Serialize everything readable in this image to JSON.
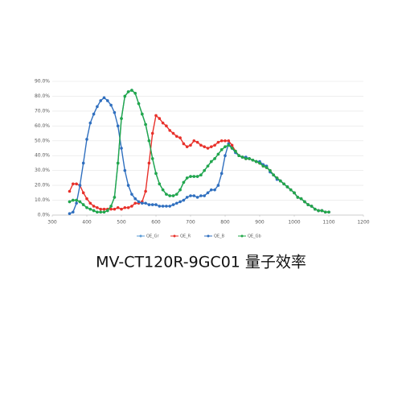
{
  "chart_data": {
    "type": "line",
    "title": "MV-CT120R-9GC01 量子效率",
    "x": [
      350,
      360,
      370,
      380,
      390,
      400,
      410,
      420,
      430,
      440,
      450,
      460,
      470,
      480,
      490,
      500,
      510,
      520,
      530,
      540,
      550,
      560,
      570,
      580,
      590,
      600,
      610,
      620,
      630,
      640,
      650,
      660,
      670,
      680,
      690,
      700,
      710,
      720,
      730,
      740,
      750,
      760,
      770,
      780,
      790,
      800,
      810,
      820,
      830,
      840,
      850,
      860,
      870,
      880,
      890,
      900,
      910,
      920,
      930,
      940,
      950,
      960,
      970,
      980,
      990,
      1000,
      1010,
      1020,
      1030,
      1040,
      1050,
      1060,
      1070,
      1080,
      1090,
      1100
    ],
    "series": [
      {
        "name": "QE_Gr",
        "color": "#5b9bd5",
        "values": [
          9,
          10,
          10,
          9,
          7,
          5,
          4,
          3,
          2,
          2,
          2,
          3,
          6,
          12,
          35,
          65,
          80,
          83,
          84,
          82,
          75,
          68,
          61,
          50,
          38,
          28,
          21,
          17,
          14,
          13,
          13,
          14,
          17,
          22,
          25,
          26,
          26,
          26,
          27,
          30,
          33,
          36,
          38,
          41,
          44,
          46,
          47,
          45,
          43,
          40,
          39,
          38,
          38,
          37,
          36,
          35,
          33,
          32,
          30,
          27,
          25,
          23,
          21,
          19,
          17,
          15,
          12,
          11,
          9,
          7,
          6,
          4,
          3,
          3,
          2,
          2
        ]
      },
      {
        "name": "QE_R",
        "color": "#e8302a",
        "values": [
          16,
          21,
          21,
          20,
          15,
          11,
          8,
          6,
          5,
          4,
          4,
          4,
          4,
          4,
          5,
          4,
          5,
          5,
          6,
          8,
          8,
          9,
          16,
          35,
          55,
          67,
          65,
          62,
          60,
          57,
          55,
          53,
          52,
          48,
          46,
          47,
          50,
          49,
          47,
          46,
          45,
          46,
          47,
          49,
          50,
          50,
          50,
          47,
          43,
          40,
          39,
          38,
          38,
          37,
          36,
          35,
          33,
          32,
          30,
          27,
          25,
          23,
          21,
          19,
          17,
          15,
          12,
          11,
          9,
          7,
          6,
          4,
          3,
          3,
          2,
          2
        ]
      },
      {
        "name": "QE_B",
        "color": "#2f6fbf",
        "values": [
          1,
          2,
          8,
          20,
          35,
          51,
          62,
          68,
          73,
          77,
          79,
          77,
          74,
          69,
          60,
          45,
          30,
          20,
          14,
          11,
          9,
          8,
          8,
          7,
          7,
          7,
          6,
          6,
          6,
          6,
          7,
          8,
          9,
          10,
          12,
          13,
          13,
          12,
          13,
          13,
          15,
          17,
          17,
          20,
          28,
          40,
          48,
          45,
          42,
          40,
          39,
          39,
          38,
          37,
          36,
          36,
          34,
          33,
          29,
          27,
          24,
          23,
          21,
          19,
          17,
          15,
          12,
          11,
          9,
          7,
          6,
          4,
          3,
          3,
          2,
          2
        ]
      },
      {
        "name": "QE_Gb",
        "color": "#22a84a",
        "values": [
          9,
          10,
          10,
          9,
          7,
          5,
          4,
          3,
          2,
          2,
          2,
          3,
          6,
          12,
          35,
          65,
          80,
          83,
          84,
          82,
          75,
          68,
          61,
          50,
          38,
          28,
          21,
          17,
          14,
          13,
          13,
          14,
          17,
          22,
          25,
          26,
          26,
          26,
          27,
          30,
          33,
          36,
          38,
          41,
          44,
          46,
          47,
          45,
          43,
          40,
          39,
          38,
          38,
          37,
          36,
          35,
          33,
          32,
          30,
          27,
          25,
          23,
          21,
          19,
          17,
          15,
          12,
          11,
          9,
          7,
          6,
          4,
          3,
          3,
          2,
          2
        ]
      }
    ],
    "xlim": [
      300,
      1200
    ],
    "xticks": [
      300,
      400,
      500,
      600,
      700,
      800,
      900,
      1000,
      1100,
      1200
    ],
    "ylim": [
      0,
      90
    ],
    "yticks": [
      {
        "value": 0,
        "label": "0.0%"
      },
      {
        "value": 10,
        "label": "10.0%"
      },
      {
        "value": 20,
        "label": "20.0%"
      },
      {
        "value": 30,
        "label": "30.0%"
      },
      {
        "value": 40,
        "label": "40.0%"
      },
      {
        "value": 50,
        "label": "50.0%"
      },
      {
        "value": 60,
        "label": "60.0%"
      },
      {
        "value": 70,
        "label": "70.0%"
      },
      {
        "value": 80,
        "label": "80.0%"
      },
      {
        "value": 90,
        "label": "90.0%"
      }
    ],
    "grid": true
  }
}
